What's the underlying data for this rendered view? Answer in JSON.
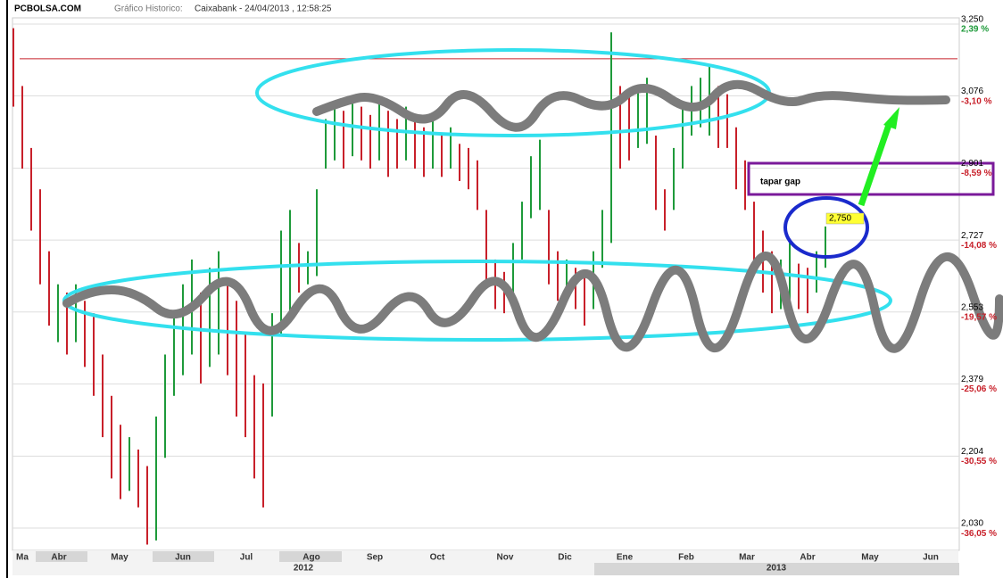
{
  "chart_data": {
    "type": "ohlc",
    "site": "PCBOLSA.COM",
    "subtitle": "Gráfico Historico:",
    "title": "Caixabank - 24/04/2013 , 12:58:25",
    "categories": [
      "Ma",
      "Abr",
      "May",
      "Jun",
      "Jul",
      "Ago",
      "Sep",
      "Oct",
      "Nov",
      "Dic",
      "Ene",
      "Feb",
      "Mar",
      "Abr",
      "May",
      "Jun"
    ],
    "years": [
      "2012",
      "2013"
    ],
    "high": [
      3.24,
      3.1,
      2.95,
      2.85,
      2.7,
      2.62,
      2.6,
      2.62,
      2.58,
      2.55,
      2.45,
      2.35,
      2.28,
      2.25,
      2.22,
      2.18,
      2.3,
      2.45,
      2.55,
      2.62,
      2.68,
      2.6,
      2.66,
      2.7,
      2.62,
      2.58,
      2.5,
      2.4,
      2.38,
      2.55,
      2.75,
      2.8,
      2.72,
      2.7,
      2.85,
      3.02,
      3.05,
      3.04,
      3.06,
      3.05,
      3.03,
      3.06,
      3.04,
      3.02,
      3.05,
      3.03,
      3.0,
      3.02,
      2.98,
      3.0,
      2.96,
      2.95,
      2.92,
      2.8,
      2.68,
      2.65,
      2.72,
      2.82,
      2.93,
      2.97,
      2.8,
      2.7,
      2.68,
      2.66,
      2.65,
      2.7,
      2.8,
      3.23,
      3.1,
      3.08,
      3.1,
      3.12,
      2.98,
      2.85,
      2.95,
      3.05,
      3.1,
      3.12,
      3.15,
      3.1,
      3.08,
      3.0,
      2.92,
      2.82,
      2.75,
      2.7,
      2.68,
      2.72,
      2.67,
      2.66,
      2.7,
      2.76
    ],
    "low": [
      3.05,
      2.9,
      2.75,
      2.62,
      2.52,
      2.48,
      2.45,
      2.48,
      2.42,
      2.35,
      2.25,
      2.15,
      2.1,
      2.12,
      2.08,
      1.99,
      2.0,
      2.2,
      2.35,
      2.4,
      2.45,
      2.38,
      2.42,
      2.45,
      2.4,
      2.3,
      2.25,
      2.15,
      2.08,
      2.3,
      2.5,
      2.55,
      2.6,
      2.62,
      2.64,
      2.9,
      2.92,
      2.9,
      2.93,
      2.92,
      2.9,
      2.92,
      2.88,
      2.9,
      2.92,
      2.9,
      2.88,
      2.9,
      2.88,
      2.9,
      2.87,
      2.85,
      2.8,
      2.62,
      2.56,
      2.55,
      2.58,
      2.68,
      2.78,
      2.8,
      2.62,
      2.58,
      2.58,
      2.56,
      2.52,
      2.56,
      2.66,
      2.72,
      2.9,
      2.92,
      2.95,
      2.96,
      2.8,
      2.75,
      2.8,
      2.9,
      2.98,
      3.0,
      2.98,
      2.95,
      2.95,
      2.85,
      2.8,
      2.65,
      2.6,
      2.55,
      2.56,
      2.58,
      2.56,
      2.55,
      2.6,
      2.66
    ],
    "up": [
      false,
      false,
      false,
      false,
      false,
      true,
      false,
      true,
      false,
      false,
      false,
      false,
      false,
      true,
      false,
      false,
      true,
      true,
      true,
      true,
      true,
      false,
      true,
      true,
      false,
      false,
      false,
      false,
      false,
      true,
      true,
      true,
      false,
      true,
      true,
      true,
      true,
      false,
      true,
      false,
      false,
      true,
      false,
      false,
      true,
      false,
      false,
      true,
      false,
      true,
      false,
      false,
      false,
      false,
      false,
      false,
      true,
      true,
      true,
      true,
      false,
      false,
      true,
      false,
      false,
      true,
      true,
      true,
      false,
      false,
      true,
      true,
      false,
      false,
      true,
      true,
      true,
      true,
      true,
      false,
      false,
      false,
      false,
      false,
      false,
      false,
      true,
      true,
      false,
      false,
      true,
      true
    ],
    "up_color": "#1e9a3a",
    "down_color": "#c8202a",
    "ylim": [
      1.976,
      3.265
    ],
    "yticks": [
      {
        "value": 2.03,
        "label": "2,030"
      },
      {
        "value": 2.204,
        "label": "2,204"
      },
      {
        "value": 2.379,
        "label": "2,379"
      },
      {
        "value": 2.553,
        "label": "2,553"
      },
      {
        "value": 2.727,
        "label": "2,727"
      },
      {
        "value": 2.901,
        "label": "2,901"
      },
      {
        "value": 3.076,
        "label": "3,076"
      },
      {
        "value": 3.25,
        "label": "3,250"
      }
    ],
    "y2lim": [
      -37.74,
      2.87
    ],
    "y2ticks": [
      {
        "value": -36.05,
        "label": "-36,05 %"
      },
      {
        "value": -30.55,
        "label": "-30,55 %"
      },
      {
        "value": -25.06,
        "label": "-25,06 %"
      },
      {
        "value": -19.57,
        "label": "-19,57 %"
      },
      {
        "value": -14.08,
        "label": "-14,08 %"
      },
      {
        "value": -8.59,
        "label": "-8,59 %"
      },
      {
        "value": -3.1,
        "label": "-3,10 %"
      },
      {
        "value": 2.39,
        "label": "2,39 %"
      }
    ],
    "reference_line": 3.166,
    "grid": true,
    "annotations": {
      "gap_text": "tapar gap",
      "price_label": "2,750"
    }
  }
}
